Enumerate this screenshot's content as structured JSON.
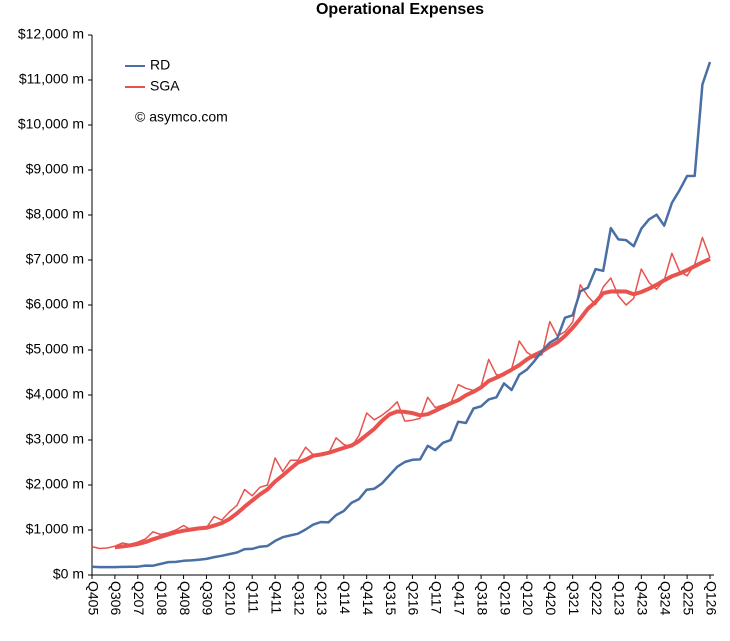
{
  "chart_data": {
    "type": "line",
    "title": "Operational Expenses",
    "annotation": "© asymco.com",
    "legend": "top-left",
    "grid": false,
    "categories": [
      "Q405",
      null,
      null,
      "Q306",
      null,
      null,
      "Q207",
      null,
      null,
      "Q108",
      null,
      null,
      "Q408",
      null,
      null,
      "Q309",
      null,
      null,
      "Q210",
      null,
      null,
      "Q111",
      null,
      null,
      "Q411",
      null,
      null,
      "Q312",
      null,
      null,
      "Q213",
      null,
      null,
      "Q114",
      null,
      null,
      "Q414",
      null,
      null,
      "Q315",
      null,
      null,
      "Q216",
      null,
      null,
      "Q117",
      null,
      null,
      "Q417",
      null,
      null,
      "Q318",
      null,
      null,
      "Q219",
      null,
      null,
      "Q120",
      null,
      null,
      "Q420",
      null,
      null,
      "Q321",
      null,
      null,
      "Q222",
      null,
      null,
      "Q123",
      null,
      null,
      "Q423",
      null,
      null,
      "Q324",
      null,
      null,
      "Q225",
      null,
      null,
      "Q126"
    ],
    "ylim": [
      0,
      12000
    ],
    "yticks": [
      {
        "value": 0,
        "label": "$0 m"
      },
      {
        "value": 1000,
        "label": "$1,000 m"
      },
      {
        "value": 2000,
        "label": "$2,000 m"
      },
      {
        "value": 3000,
        "label": "$3,000 m"
      },
      {
        "value": 4000,
        "label": "$4,000 m"
      },
      {
        "value": 5000,
        "label": "$5,000 m"
      },
      {
        "value": 6000,
        "label": "$6,000 m"
      },
      {
        "value": 7000,
        "label": "$7,000 m"
      },
      {
        "value": 8000,
        "label": "$8,000 m"
      },
      {
        "value": 9000,
        "label": "$9,000 m"
      },
      {
        "value": 10000,
        "label": "$10,000 m"
      },
      {
        "value": 11000,
        "label": "$11,000 m"
      },
      {
        "value": 12000,
        "label": "$12,000 m"
      }
    ],
    "series": [
      {
        "name": "RD",
        "color": "#4a6fa5",
        "line_width": 2.5,
        "values": [
          182,
          176,
          175,
          175,
          180,
          183,
          185,
          209,
          206,
          246,
          286,
          292,
          315,
          324,
          339,
          357,
          398,
          426,
          464,
          500,
          575,
          581,
          628,
          645,
          758,
          841,
          880,
          918,
          1010,
          1119,
          1178,
          1168,
          1330,
          1422,
          1603,
          1686,
          1895,
          1918,
          2034,
          2220,
          2404,
          2511,
          2560,
          2570,
          2871,
          2776,
          2937,
          2997,
          3407,
          3378,
          3701,
          3750,
          3902,
          3948,
          4257,
          4110,
          4451,
          4565,
          4758,
          4978,
          5163,
          5262,
          5717,
          5772,
          6306,
          6387,
          6797,
          6761,
          7709,
          7457,
          7442,
          7307,
          7696,
          7903,
          8006,
          7765,
          8268,
          8550,
          8866,
          8870,
          10900,
          11400
        ]
      },
      {
        "name": "SGA",
        "color": "#e8534f",
        "line_width": 1.5,
        "values": [
          630,
          590,
          600,
          640,
          710,
          680,
          730,
          800,
          960,
          900,
          940,
          1000,
          1100,
          1000,
          1040,
          1050,
          1300,
          1220,
          1400,
          1550,
          1900,
          1760,
          1950,
          2000,
          2600,
          2300,
          2550,
          2550,
          2840,
          2670,
          2650,
          2700,
          3050,
          2900,
          2850,
          3100,
          3600,
          3450,
          3550,
          3680,
          3850,
          3420,
          3440,
          3480,
          3950,
          3720,
          3780,
          3810,
          4230,
          4150,
          4100,
          4200,
          4790,
          4450,
          4430,
          4580,
          5200,
          4950,
          4830,
          4900,
          5630,
          5310,
          5410,
          5620,
          6450,
          6190,
          6010,
          6400,
          6600,
          6200,
          6000,
          6150,
          6800,
          6500,
          6350,
          6550,
          7150,
          6750,
          6650,
          6900,
          7500,
          7050
        ]
      },
      {
        "color": "#e8534f",
        "line_width": 4,
        "values": [
          null,
          null,
          null,
          615,
          635,
          657,
          690,
          730,
          793,
          848,
          900,
          950,
          985,
          1010,
          1035,
          1048,
          1098,
          1153,
          1243,
          1368,
          1518,
          1653,
          1790,
          1903,
          2078,
          2213,
          2363,
          2500,
          2560,
          2653,
          2678,
          2715,
          2768,
          2825,
          2875,
          2975,
          3113,
          3250,
          3425,
          3570,
          3633,
          3625,
          3598,
          3548,
          3573,
          3648,
          3733,
          3815,
          3885,
          3993,
          4073,
          4170,
          4310,
          4385,
          4468,
          4563,
          4665,
          4790,
          4890,
          4970,
          5078,
          5168,
          5313,
          5493,
          5698,
          5918,
          6068,
          6263,
          6300,
          6303,
          6300,
          6238,
          6288,
          6363,
          6450,
          6550,
          6638,
          6700,
          6775,
          6863,
          6950,
          7025
        ]
      }
    ]
  }
}
